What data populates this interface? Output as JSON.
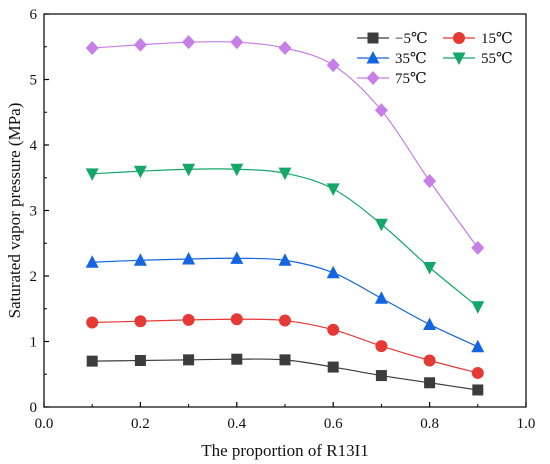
{
  "chart_data": {
    "type": "line",
    "title": "",
    "xlabel": "The proportion of R13I1",
    "ylabel": "Saturated vapor pressure (MPa)",
    "xlim": [
      0.0,
      1.0
    ],
    "ylim": [
      0,
      6
    ],
    "xticks": [
      "0.0",
      "0.2",
      "0.4",
      "0.6",
      "0.8",
      "1.0"
    ],
    "yticks": [
      "0",
      "1",
      "2",
      "3",
      "4",
      "5",
      "6"
    ],
    "grid": false,
    "legend_position": "top-right",
    "x": [
      0.1,
      0.2,
      0.3,
      0.4,
      0.5,
      0.6,
      0.7,
      0.8,
      0.9
    ],
    "series": [
      {
        "name": "−5℃",
        "color": "#3c3c3c",
        "marker": "square",
        "values": [
          0.7,
          0.71,
          0.72,
          0.73,
          0.72,
          0.61,
          0.48,
          0.37,
          0.26
        ]
      },
      {
        "name": "15℃",
        "color": "#e53935",
        "marker": "circle",
        "values": [
          1.29,
          1.31,
          1.33,
          1.34,
          1.32,
          1.18,
          0.93,
          0.71,
          0.52
        ]
      },
      {
        "name": "35℃",
        "color": "#1565e0",
        "marker": "triangle-up",
        "values": [
          2.21,
          2.24,
          2.26,
          2.27,
          2.24,
          2.05,
          1.66,
          1.26,
          0.92
        ]
      },
      {
        "name": "55℃",
        "color": "#13a86a",
        "marker": "triangle-down",
        "values": [
          3.56,
          3.6,
          3.63,
          3.63,
          3.57,
          3.33,
          2.79,
          2.13,
          1.53
        ]
      },
      {
        "name": "75℃",
        "color": "#c77ee6",
        "marker": "diamond",
        "values": [
          5.48,
          5.53,
          5.57,
          5.57,
          5.48,
          5.22,
          4.53,
          3.45,
          2.43
        ]
      }
    ]
  }
}
